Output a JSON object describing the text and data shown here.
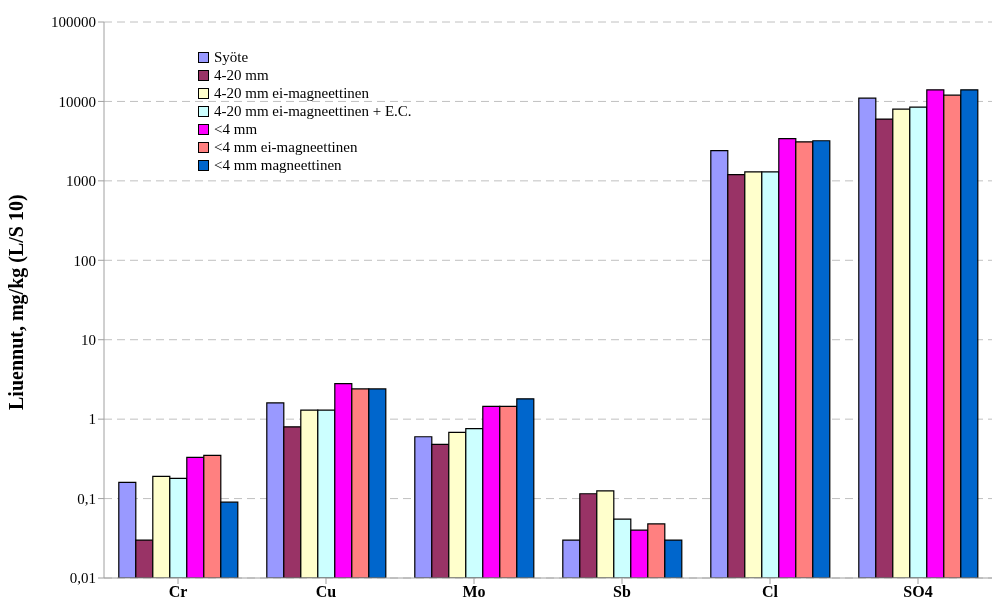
{
  "chart_data": {
    "type": "bar",
    "ylabel": "Liuennut, mg/kg (L/S 10)",
    "categories": [
      "Cr",
      "Cu",
      "Mo",
      "Sb",
      "Cl",
      "SO4"
    ],
    "series": [
      {
        "name": "Syöte",
        "color": "#9999ff",
        "values": [
          0.16,
          1.6,
          0.6,
          0.03,
          2400,
          11000
        ]
      },
      {
        "name": "4-20 mm",
        "color": "#993366",
        "values": [
          0.03,
          0.8,
          0.48,
          0.115,
          1200,
          6000
        ]
      },
      {
        "name": "4-20 mm ei-magneettinen",
        "color": "#ffffcc",
        "values": [
          0.19,
          1.3,
          0.68,
          0.125,
          1300,
          8000
        ]
      },
      {
        "name": "4-20 mm ei-magneettinen + E.C.",
        "color": "#ccffff",
        "values": [
          0.18,
          1.3,
          0.76,
          0.055,
          1300,
          8500
        ]
      },
      {
        "name": "<4 mm",
        "color": "#ff00ff",
        "values": [
          0.33,
          2.8,
          1.45,
          0.04,
          3400,
          14000
        ]
      },
      {
        "name": "<4 mm ei-magneettinen",
        "color": "#ff8080",
        "values": [
          0.35,
          2.4,
          1.45,
          0.048,
          3100,
          12000
        ]
      },
      {
        "name": "<4 mm magneettinen",
        "color": "#0066cc",
        "values": [
          0.09,
          2.4,
          1.8,
          0.03,
          3200,
          14000
        ]
      }
    ],
    "log": "y",
    "ylim": [
      0.01,
      100000
    ],
    "yticks": [
      {
        "value": 0.01,
        "label": "0,01"
      },
      {
        "value": 0.1,
        "label": "0,1"
      },
      1,
      10,
      100,
      1000,
      10000,
      100000
    ],
    "grid": "y",
    "legend": "top left"
  }
}
